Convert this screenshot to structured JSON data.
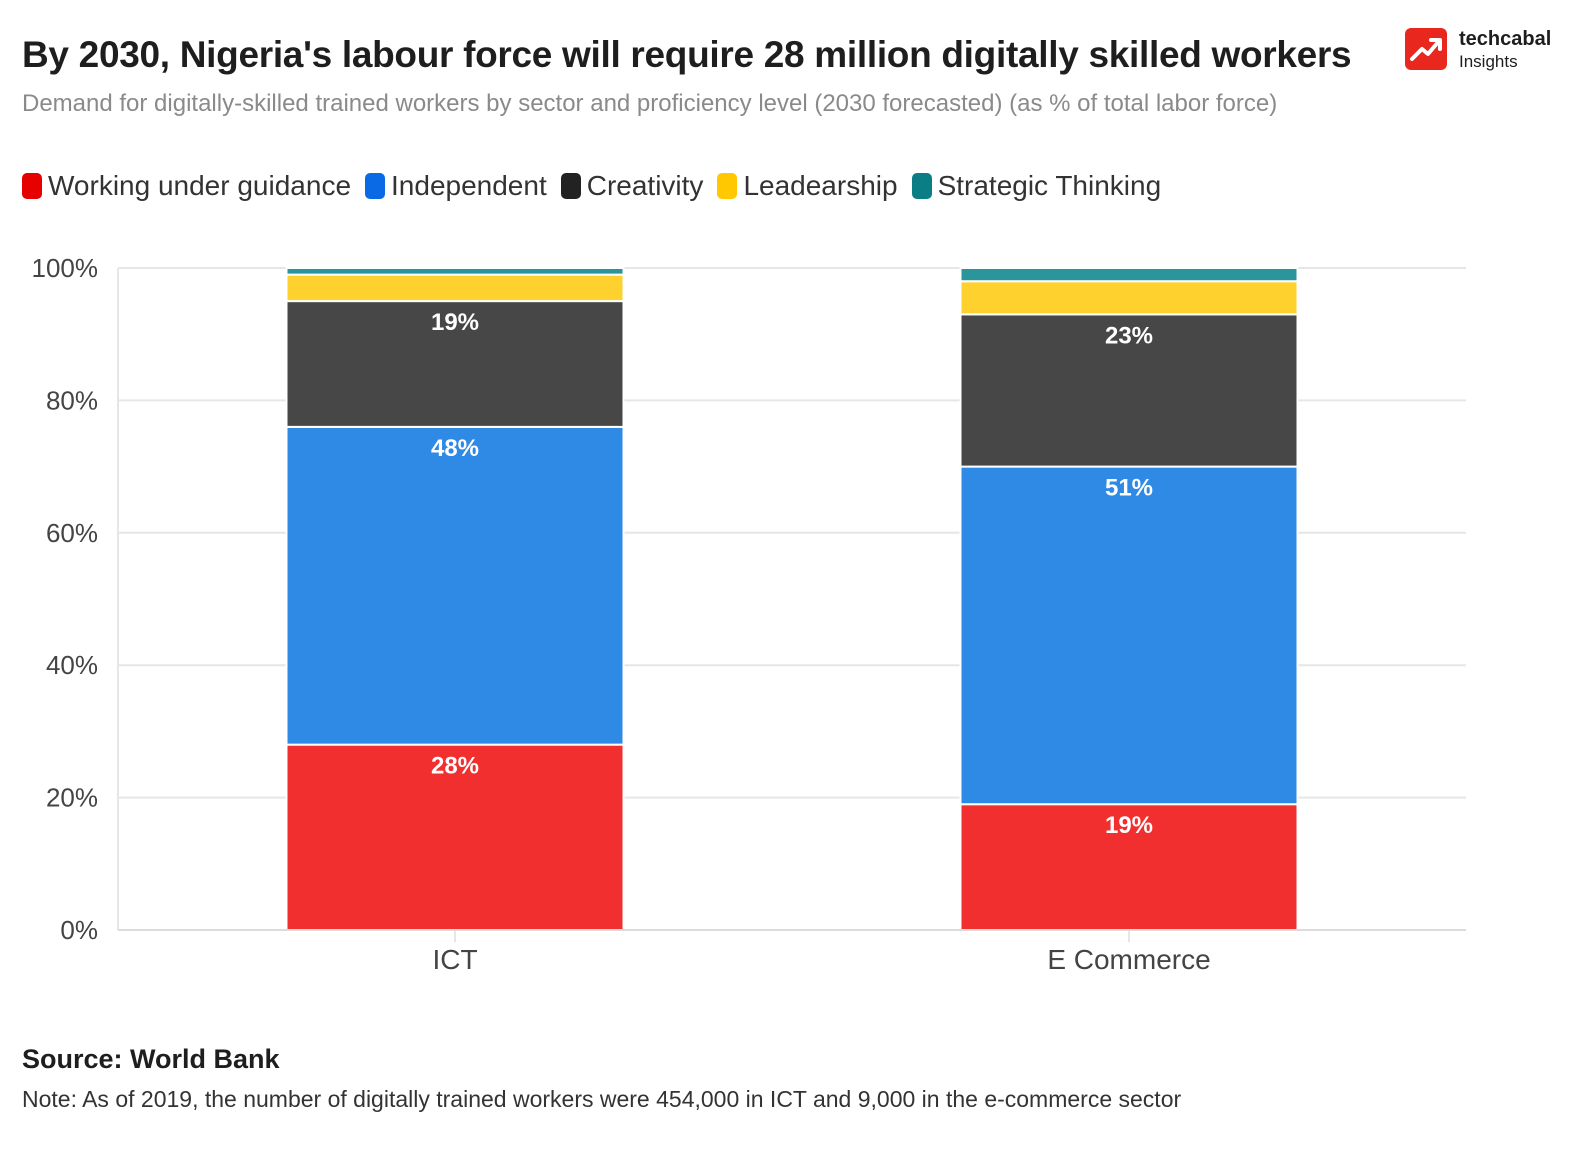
{
  "header": {
    "title": "By 2030, Nigeria's labour force will require 28 million digitally skilled workers",
    "subtitle": "Demand for digitally-skilled trained workers by sector and proficiency level (2030 forecasted) (as % of total labor force)"
  },
  "logo": {
    "name": "techcabal",
    "sub": "Insights",
    "icon": "trend-arrow-icon",
    "color": "#e8281e"
  },
  "footer": {
    "source": "Source: World Bank",
    "note": "Note: As of 2019, the number of digitally trained workers were 454,000 in ICT and 9,000 in the e-commerce sector"
  },
  "chart_data": {
    "type": "bar",
    "stacked": true,
    "title": "By 2030, Nigeria's labour force will require 28 million digitally skilled workers",
    "categories": [
      "ICT",
      "E Commerce"
    ],
    "ylim": [
      0,
      100
    ],
    "yticks": [
      0,
      20,
      40,
      60,
      80,
      100
    ],
    "ytick_labels": [
      "0%",
      "20%",
      "40%",
      "60%",
      "80%",
      "100%"
    ],
    "grid": true,
    "legend": "top-left",
    "series": [
      {
        "name": "Working under guidance",
        "color": "#f22f2f",
        "values": [
          28,
          19
        ],
        "labels": [
          "28%",
          "19%"
        ]
      },
      {
        "name": "Independent",
        "color": "#2f8ae6",
        "values": [
          48,
          51
        ],
        "labels": [
          "48%",
          "51%"
        ]
      },
      {
        "name": "Creativity",
        "color": "#474747",
        "values": [
          19,
          23
        ],
        "labels": [
          "19%",
          "23%"
        ]
      },
      {
        "name": "Leadearship",
        "color": "#ffd12e",
        "values": [
          4,
          5
        ],
        "labels": [
          "",
          ""
        ]
      },
      {
        "name": "Strategic Thinking",
        "color": "#2a969c",
        "values": [
          1,
          2
        ],
        "labels": [
          "",
          ""
        ]
      }
    ],
    "legend_swatch_colors": [
      "#e60000",
      "#0a6ae6",
      "#222222",
      "#ffc800",
      "#0b7d85"
    ]
  }
}
